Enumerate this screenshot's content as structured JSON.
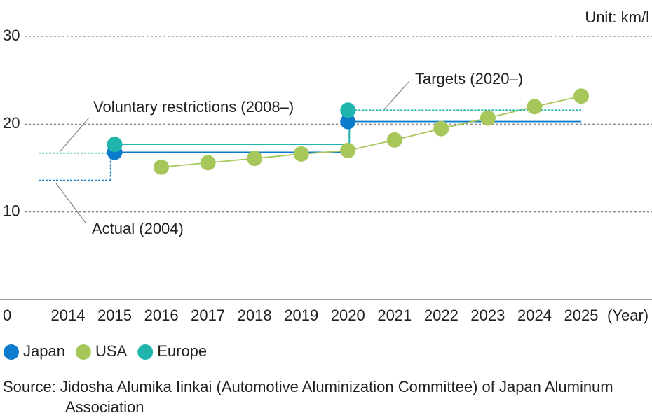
{
  "chart_data": {
    "type": "line",
    "y_unit": "Unit: km/l",
    "x_label": "(Year)",
    "x": [
      2014,
      2015,
      2016,
      2017,
      2018,
      2019,
      2020,
      2021,
      2022,
      2023,
      2024,
      2025
    ],
    "ylim": [
      0,
      30
    ],
    "yticks": [
      0,
      10,
      20,
      30
    ],
    "grid": true,
    "series": [
      {
        "name": "Japan",
        "color": "#0a7ccb",
        "step": true,
        "baseline": 13.6,
        "tail_style": "solid",
        "values": [
          null,
          16.8,
          null,
          null,
          null,
          null,
          20.3,
          null,
          null,
          null,
          null,
          null
        ]
      },
      {
        "name": "USA",
        "color": "#a8c75a",
        "step": false,
        "values": [
          null,
          null,
          15.1,
          15.6,
          16.1,
          16.6,
          17.0,
          18.2,
          19.5,
          20.7,
          22.0,
          23.2
        ]
      },
      {
        "name": "Europe",
        "color": "#1fb5ad",
        "step": true,
        "baseline": 16.7,
        "tail_style": "dashed",
        "values": [
          null,
          17.7,
          null,
          null,
          null,
          null,
          21.6,
          null,
          null,
          null,
          null,
          null
        ]
      }
    ],
    "annotations": [
      {
        "text": "Voluntary restrictions (2008–)"
      },
      {
        "text": "Actual (2004)"
      },
      {
        "text": "Targets (2020–)"
      }
    ],
    "source": "Source: Jidosha Alumika Iinkai (Automotive Aluminization Committee) of Japan Aluminum Association"
  }
}
